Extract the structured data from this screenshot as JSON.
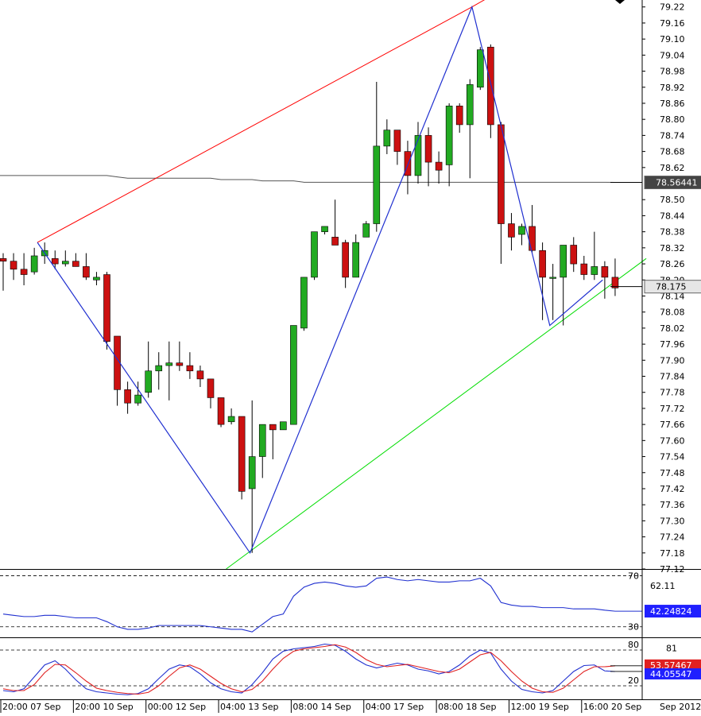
{
  "chart_data": [
    {
      "type": "candlestick",
      "panel": "price",
      "ylim": [
        77.12,
        79.24
      ],
      "yticks": [
        "79.22",
        "79.16",
        "79.10",
        "79.04",
        "78.98",
        "78.92",
        "78.86",
        "78.80",
        "78.74",
        "78.68",
        "78.62",
        "78.50",
        "78.44",
        "78.38",
        "78.32",
        "78.26",
        "78.20",
        "78.14",
        "78.08",
        "78.02",
        "77.96",
        "77.90",
        "77.84",
        "77.78",
        "77.72",
        "77.66",
        "77.60",
        "77.54",
        "77.48",
        "77.42",
        "77.36",
        "77.30",
        "77.24",
        "77.18",
        "77.12"
      ],
      "candles": [
        {
          "o": 78.28,
          "h": 78.3,
          "l": 78.16,
          "c": 78.27
        },
        {
          "o": 78.27,
          "h": 78.3,
          "l": 78.2,
          "c": 78.24
        },
        {
          "o": 78.24,
          "h": 78.3,
          "l": 78.18,
          "c": 78.22
        },
        {
          "o": 78.23,
          "h": 78.32,
          "l": 78.22,
          "c": 78.29
        },
        {
          "o": 78.29,
          "h": 78.34,
          "l": 78.26,
          "c": 78.31
        },
        {
          "o": 78.28,
          "h": 78.31,
          "l": 78.24,
          "c": 78.26
        },
        {
          "o": 78.26,
          "h": 78.31,
          "l": 78.25,
          "c": 78.27
        },
        {
          "o": 78.27,
          "h": 78.3,
          "l": 78.25,
          "c": 78.25
        },
        {
          "o": 78.25,
          "h": 78.3,
          "l": 78.2,
          "c": 78.21
        },
        {
          "o": 78.2,
          "h": 78.23,
          "l": 78.18,
          "c": 78.21
        },
        {
          "o": 78.22,
          "h": 78.23,
          "l": 77.94,
          "c": 77.97
        },
        {
          "o": 77.99,
          "h": 77.99,
          "l": 77.73,
          "c": 77.79
        },
        {
          "o": 77.79,
          "h": 77.82,
          "l": 77.7,
          "c": 77.74
        },
        {
          "o": 77.74,
          "h": 77.82,
          "l": 77.73,
          "c": 77.77
        },
        {
          "o": 77.78,
          "h": 77.97,
          "l": 77.76,
          "c": 77.86
        },
        {
          "o": 77.86,
          "h": 77.93,
          "l": 77.79,
          "c": 77.88
        },
        {
          "o": 77.88,
          "h": 77.97,
          "l": 77.75,
          "c": 77.89
        },
        {
          "o": 77.89,
          "h": 77.97,
          "l": 77.86,
          "c": 77.88
        },
        {
          "o": 77.88,
          "h": 77.93,
          "l": 77.83,
          "c": 77.86
        },
        {
          "o": 77.86,
          "h": 77.88,
          "l": 77.8,
          "c": 77.83
        },
        {
          "o": 77.83,
          "h": 77.83,
          "l": 77.72,
          "c": 77.76
        },
        {
          "o": 77.76,
          "h": 77.76,
          "l": 77.65,
          "c": 77.66
        },
        {
          "o": 77.67,
          "h": 77.72,
          "l": 77.66,
          "c": 77.69
        },
        {
          "o": 77.69,
          "h": 77.69,
          "l": 77.38,
          "c": 77.41
        },
        {
          "o": 77.42,
          "h": 77.75,
          "l": 77.18,
          "c": 77.54
        },
        {
          "o": 77.54,
          "h": 77.66,
          "l": 77.46,
          "c": 77.66
        },
        {
          "o": 77.66,
          "h": 77.66,
          "l": 77.53,
          "c": 77.64
        },
        {
          "o": 77.64,
          "h": 77.67,
          "l": 77.64,
          "c": 77.67
        },
        {
          "o": 77.66,
          "h": 78.03,
          "l": 77.66,
          "c": 78.03
        },
        {
          "o": 78.02,
          "h": 78.21,
          "l": 78.01,
          "c": 78.21
        },
        {
          "o": 78.21,
          "h": 78.38,
          "l": 78.2,
          "c": 78.38
        },
        {
          "o": 78.38,
          "h": 78.4,
          "l": 78.37,
          "c": 78.4
        },
        {
          "o": 78.36,
          "h": 78.5,
          "l": 78.33,
          "c": 78.33
        },
        {
          "o": 78.34,
          "h": 78.35,
          "l": 78.17,
          "c": 78.21
        },
        {
          "o": 78.21,
          "h": 78.37,
          "l": 78.21,
          "c": 78.34
        },
        {
          "o": 78.36,
          "h": 78.42,
          "l": 78.36,
          "c": 78.41
        },
        {
          "o": 78.41,
          "h": 78.94,
          "l": 78.38,
          "c": 78.7
        },
        {
          "o": 78.7,
          "h": 78.8,
          "l": 78.67,
          "c": 78.76
        },
        {
          "o": 78.76,
          "h": 78.76,
          "l": 78.63,
          "c": 78.68
        },
        {
          "o": 78.68,
          "h": 78.72,
          "l": 78.52,
          "c": 78.59
        },
        {
          "o": 78.59,
          "h": 78.79,
          "l": 78.56,
          "c": 78.74
        },
        {
          "o": 78.74,
          "h": 78.77,
          "l": 78.55,
          "c": 78.64
        },
        {
          "o": 78.64,
          "h": 78.68,
          "l": 78.56,
          "c": 78.61
        },
        {
          "o": 78.63,
          "h": 78.86,
          "l": 78.55,
          "c": 78.85
        },
        {
          "o": 78.85,
          "h": 78.86,
          "l": 78.75,
          "c": 78.78
        },
        {
          "o": 78.78,
          "h": 78.95,
          "l": 78.58,
          "c": 78.93
        },
        {
          "o": 78.92,
          "h": 79.07,
          "l": 78.91,
          "c": 79.06
        },
        {
          "o": 79.07,
          "h": 79.08,
          "l": 78.73,
          "c": 78.78
        },
        {
          "o": 78.78,
          "h": 78.79,
          "l": 78.26,
          "c": 78.41
        },
        {
          "o": 78.41,
          "h": 78.45,
          "l": 78.31,
          "c": 78.36
        },
        {
          "o": 78.37,
          "h": 78.41,
          "l": 78.33,
          "c": 78.4
        },
        {
          "o": 78.4,
          "h": 78.48,
          "l": 78.3,
          "c": 78.31
        },
        {
          "o": 78.31,
          "h": 78.34,
          "l": 78.05,
          "c": 78.21
        },
        {
          "o": 78.21,
          "h": 78.26,
          "l": 78.05,
          "c": 78.21
        },
        {
          "o": 78.21,
          "h": 78.32,
          "l": 78.03,
          "c": 78.33
        },
        {
          "o": 78.33,
          "h": 78.36,
          "l": 78.23,
          "c": 78.26
        },
        {
          "o": 78.26,
          "h": 78.29,
          "l": 78.2,
          "c": 78.22
        },
        {
          "o": 78.22,
          "h": 78.38,
          "l": 78.2,
          "c": 78.25
        },
        {
          "o": 78.25,
          "h": 78.27,
          "l": 78.13,
          "c": 78.21
        },
        {
          "o": 78.21,
          "h": 78.28,
          "l": 78.14,
          "c": 78.17
        }
      ],
      "moving_average": [
        78.59,
        78.59,
        78.59,
        78.59,
        78.59,
        78.59,
        78.59,
        78.59,
        78.59,
        78.59,
        78.59,
        78.585,
        78.58,
        78.58,
        78.58,
        78.58,
        78.58,
        78.58,
        78.58,
        78.58,
        78.58,
        78.575,
        78.575,
        78.575,
        78.575,
        78.57,
        78.57,
        78.57,
        78.57,
        78.565,
        78.565,
        78.565,
        78.565,
        78.565,
        78.565,
        78.565,
        78.565,
        78.565,
        78.565,
        78.565,
        78.565,
        78.565,
        78.565,
        78.565,
        78.565,
        78.565,
        78.565,
        78.565,
        78.565,
        78.565,
        78.565,
        78.565,
        78.565,
        78.565,
        78.565,
        78.565,
        78.565,
        78.565,
        78.565,
        78.5644
      ],
      "channel_upper_red": [
        {
          "i": 3.3,
          "v": 78.34
        },
        {
          "i": 45.2,
          "v": 79.22
        },
        {
          "i": 47.0,
          "v": 79.26
        }
      ],
      "channel_lower_green": [
        {
          "i": 21.5,
          "v": 77.12
        },
        {
          "i": 62.0,
          "v": 78.28
        }
      ],
      "zigzag_blue": [
        {
          "i": 3.3,
          "v": 78.34
        },
        {
          "i": 23.8,
          "v": 77.18
        },
        {
          "i": 45.2,
          "v": 79.22
        },
        {
          "i": 52.7,
          "v": 78.03
        },
        {
          "i": 57.8,
          "v": 78.2
        }
      ],
      "price_tags": [
        {
          "label": "78.56441",
          "value": 78.56441,
          "bg": "#444444",
          "fg": "#ffffff"
        },
        {
          "label": "78.175",
          "value": 78.175,
          "bg": "#e6e6e6",
          "fg": "#000000"
        }
      ]
    },
    {
      "type": "line",
      "panel": "rsi",
      "ylim": [
        23,
        74
      ],
      "levels": [
        70,
        30
      ],
      "yticks": [
        "70",
        "62.11",
        "30"
      ],
      "series": [
        {
          "color": "#2030d0",
          "values": [
            40,
            39,
            38,
            38,
            39,
            39,
            38,
            37,
            37,
            37,
            34,
            30,
            28,
            28,
            29,
            31,
            31,
            31,
            31,
            31,
            30,
            29,
            28,
            28,
            26,
            32,
            38,
            40,
            54,
            61,
            64,
            65,
            64,
            62,
            61,
            62,
            68,
            69,
            67,
            66,
            67,
            66,
            65,
            65,
            66,
            66,
            68,
            62,
            49,
            47,
            46,
            46,
            45,
            45,
            45,
            44,
            44,
            44,
            43,
            42.2
          ]
        }
      ],
      "current_tag": {
        "label": "42.24824",
        "value": 42.24824,
        "bg": "#2020ff",
        "fg": "#ffffff"
      }
    },
    {
      "type": "line",
      "panel": "stochastic",
      "ylim": [
        0,
        100
      ],
      "levels": [
        80,
        20
      ],
      "yticks": [
        "81",
        "80",
        "20"
      ],
      "series": [
        {
          "color": "#2030d0",
          "values": [
            12,
            10,
            15,
            35,
            55,
            62,
            48,
            30,
            15,
            10,
            8,
            6,
            5,
            7,
            15,
            32,
            48,
            55,
            52,
            40,
            25,
            15,
            10,
            8,
            22,
            42,
            65,
            78,
            82,
            84,
            86,
            90,
            88,
            78,
            65,
            55,
            50,
            54,
            58,
            55,
            48,
            45,
            40,
            44,
            55,
            70,
            80,
            75,
            48,
            28,
            14,
            10,
            8,
            12,
            28,
            44,
            54,
            55,
            45,
            44
          ]
        },
        {
          "color": "#e02020",
          "values": [
            15,
            12,
            12,
            22,
            42,
            56,
            55,
            42,
            28,
            16,
            12,
            9,
            7,
            6,
            9,
            20,
            36,
            50,
            55,
            48,
            36,
            24,
            15,
            10,
            14,
            28,
            48,
            66,
            78,
            82,
            84,
            86,
            89,
            85,
            76,
            64,
            56,
            52,
            54,
            56,
            52,
            48,
            44,
            42,
            48,
            60,
            72,
            76,
            62,
            44,
            28,
            16,
            10,
            9,
            16,
            30,
            44,
            52,
            52,
            53.6
          ]
        }
      ],
      "current_tags": [
        {
          "label": "53.57467",
          "value": 53.57467,
          "bg": "#e02020",
          "fg": "#ffffff"
        },
        {
          "label": "44.05547",
          "value": 44.05547,
          "bg": "#2020ff",
          "fg": "#ffffff"
        }
      ]
    }
  ],
  "x_axis": {
    "labels": [
      {
        "i": 0,
        "text": "20:00 07 Sep"
      },
      {
        "i": 7,
        "text": "20:00 10 Sep"
      },
      {
        "i": 14,
        "text": "00:00 12 Sep"
      },
      {
        "i": 21,
        "text": "04:00 13 Sep"
      },
      {
        "i": 28,
        "text": "08:00 14 Sep"
      },
      {
        "i": 35,
        "text": "04:00 17 Sep"
      },
      {
        "i": 42,
        "text": "08:00 18 Sep"
      },
      {
        "i": 49,
        "text": "12:00 19 Sep"
      },
      {
        "i": 56,
        "text": "16:00 20 Sep"
      }
    ],
    "corner_label": "Sep 2012"
  },
  "colors": {
    "up": "#22aa22",
    "down": "#cc1111",
    "wick": "#000000",
    "ma": "#555555",
    "grid_dash": "#000000"
  }
}
